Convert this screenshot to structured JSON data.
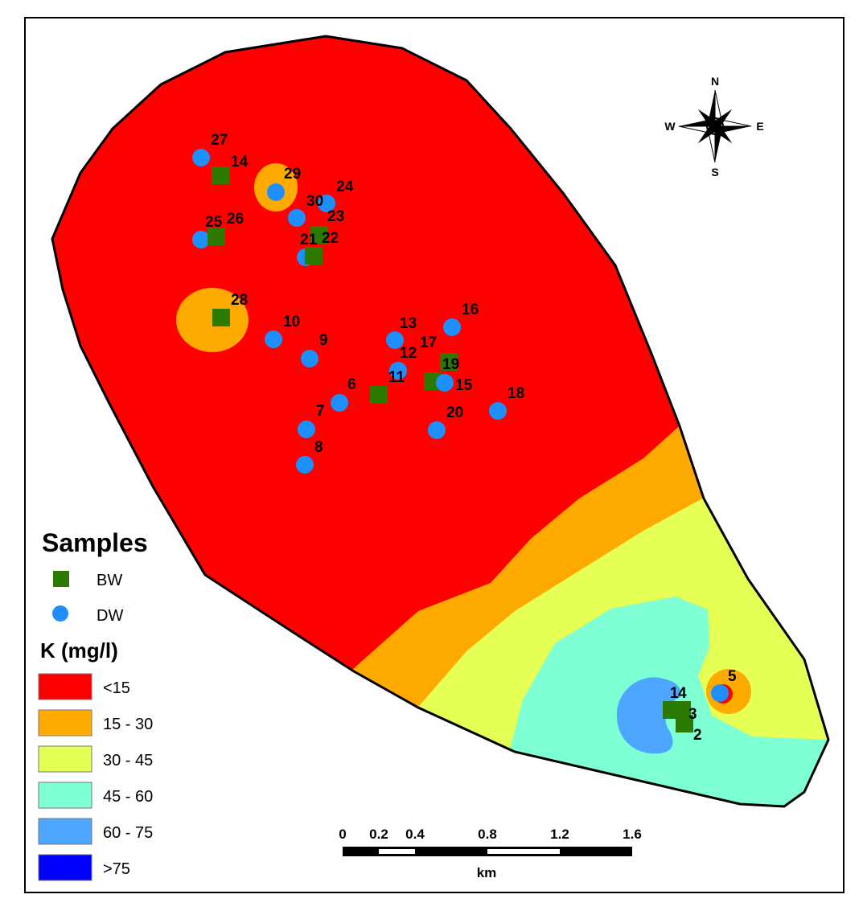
{
  "map": {
    "colors": {
      "lt15": "#ff0000",
      "c15_30": "#ffaa00",
      "c30_45": "#e6ff55",
      "c45_60": "#7fffd4",
      "c60_75": "#4da6ff",
      "gt75": "#0000ff",
      "bw": "#2d7a00",
      "dw": "#1e8fff"
    },
    "samples": [
      {
        "id": "27",
        "type": "DW"
      },
      {
        "id": "14",
        "type": "BW"
      },
      {
        "id": "29",
        "type": "DW"
      },
      {
        "id": "24",
        "type": "DW"
      },
      {
        "id": "30",
        "type": "DW"
      },
      {
        "id": "23",
        "type": "BW"
      },
      {
        "id": "25",
        "type": "DW"
      },
      {
        "id": "26",
        "type": "BW"
      },
      {
        "id": "21",
        "type": "DW"
      },
      {
        "id": "22",
        "type": "BW"
      },
      {
        "id": "28",
        "type": "BW"
      },
      {
        "id": "10",
        "type": "DW"
      },
      {
        "id": "9",
        "type": "DW"
      },
      {
        "id": "13",
        "type": "DW"
      },
      {
        "id": "16",
        "type": "DW"
      },
      {
        "id": "12",
        "type": "DW"
      },
      {
        "id": "17",
        "type": "BW"
      },
      {
        "id": "19",
        "type": "BW"
      },
      {
        "id": "15",
        "type": "DW"
      },
      {
        "id": "11",
        "type": "BW"
      },
      {
        "id": "6",
        "type": "DW"
      },
      {
        "id": "7",
        "type": "DW"
      },
      {
        "id": "8",
        "type": "DW"
      },
      {
        "id": "20",
        "type": "DW"
      },
      {
        "id": "18",
        "type": "DW"
      },
      {
        "id": "5",
        "type": "DW"
      },
      {
        "id": "1",
        "type": "BW"
      },
      {
        "id": "4",
        "type": "BW"
      },
      {
        "id": "3",
        "type": "BW"
      },
      {
        "id": "2",
        "type": "BW"
      }
    ]
  },
  "compass": {
    "n": "N",
    "s": "S",
    "e": "E",
    "w": "W"
  },
  "legend": {
    "samples_title": "Samples",
    "bw": "BW",
    "dw": "DW",
    "k_title": "K (mg/l)",
    "classes": [
      "<15",
      "15 - 30",
      "30 - 45",
      "45 - 60",
      "60 - 75",
      ">75"
    ]
  },
  "scalebar": {
    "ticks": [
      "0",
      "0.2",
      "0.4",
      "0.8",
      "1.2",
      "1.6"
    ],
    "unit": "km"
  }
}
